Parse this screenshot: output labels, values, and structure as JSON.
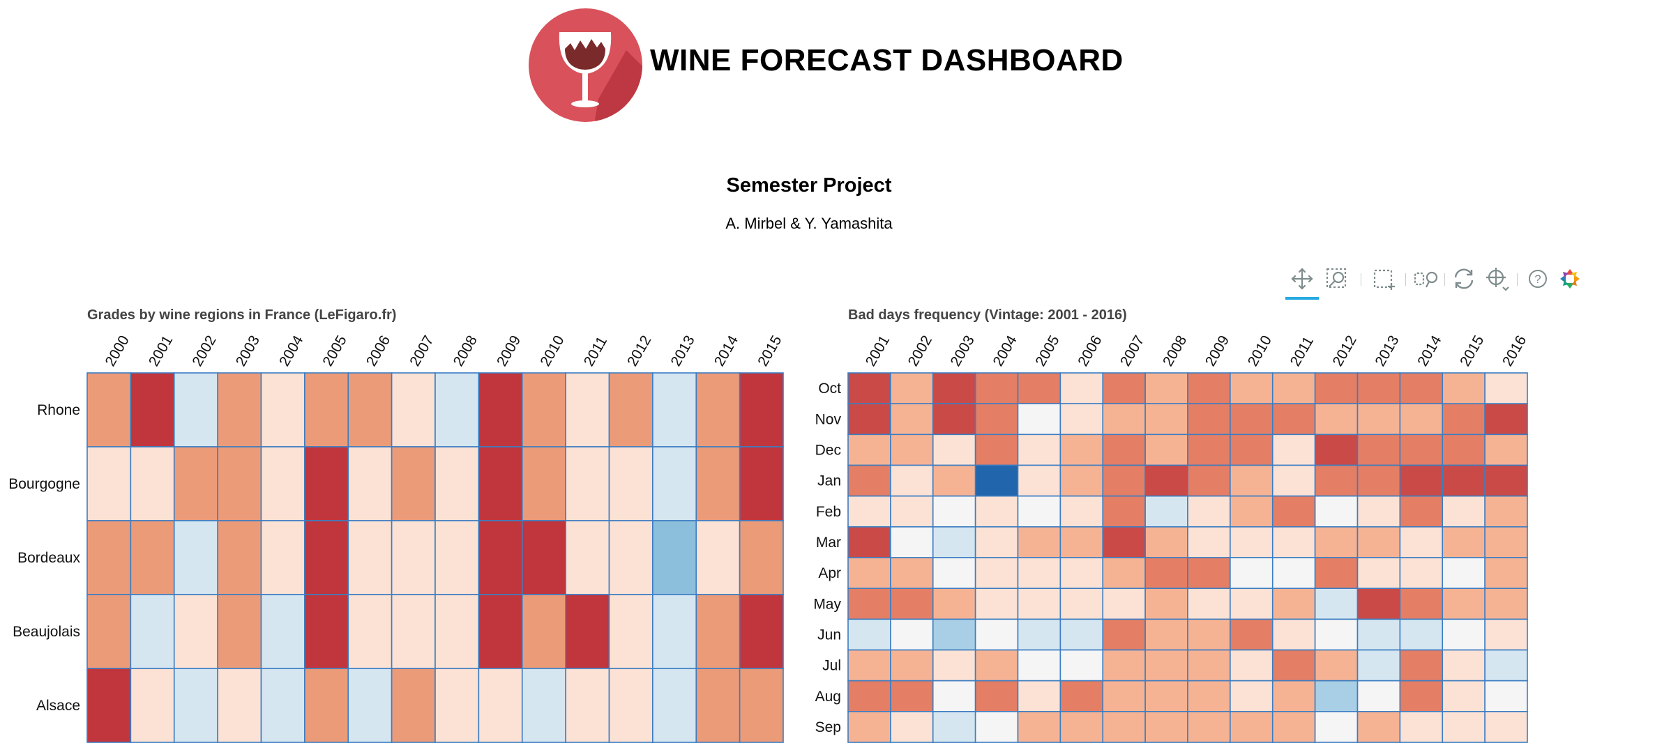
{
  "header": {
    "title": "WINE FORECAST DASHBOARD",
    "subtitle": "Semester Project",
    "authors": "A. Mirbel & Y. Yamashita",
    "logo_icon": "wine-glass-icon",
    "logo_color": "#d9515a"
  },
  "toolbar": {
    "tools": [
      {
        "name": "pan-tool",
        "icon": "move-icon",
        "active": true
      },
      {
        "name": "wheel-zoom-tool",
        "icon": "zoom-icon",
        "active": false
      },
      {
        "name": "box-zoom-tool",
        "icon": "box-select-icon",
        "active": false
      },
      {
        "name": "link-tool",
        "icon": "link-icon",
        "active": false
      },
      {
        "name": "reset-tool",
        "icon": "reset-icon",
        "active": false
      },
      {
        "name": "crosshair-tool",
        "icon": "crosshair-icon",
        "active": false
      },
      {
        "name": "help-tool",
        "icon": "help-icon",
        "active": false
      },
      {
        "name": "bokeh-logo",
        "icon": "bokeh-logo-icon",
        "active": false
      }
    ]
  },
  "colors": {
    "palette": [
      "#2166ac",
      "#8bbfdc",
      "#a8cfe5",
      "#d5e6f1",
      "#f5f5f5",
      "#fbe2d5",
      "#f6b394",
      "#ec9b79",
      "#e47e65",
      "#ca4a48",
      "#c1353d"
    ],
    "grid_line": "#3c7dc2"
  },
  "chart_data": [
    {
      "type": "heatmap",
      "title": "Grades by wine regions in France (LeFigaro.fr)",
      "x": [
        "2000",
        "2001",
        "2002",
        "2003",
        "2004",
        "2005",
        "2006",
        "2007",
        "2008",
        "2009",
        "2010",
        "2011",
        "2012",
        "2013",
        "2014",
        "2015"
      ],
      "y": [
        "Rhone",
        "Bourgogne",
        "Bordeaux",
        "Beaujolais",
        "Alsace"
      ],
      "color_scale": "diverging blue-white-red, 0 = darkest blue, 10 = darkest red",
      "values": [
        [
          7,
          10,
          3,
          7,
          5,
          7,
          7,
          5,
          3,
          10,
          7,
          5,
          7,
          3,
          7,
          10
        ],
        [
          5,
          5,
          7,
          7,
          5,
          10,
          5,
          7,
          5,
          10,
          7,
          5,
          5,
          3,
          7,
          10
        ],
        [
          7,
          7,
          3,
          7,
          5,
          10,
          5,
          5,
          5,
          10,
          10,
          5,
          5,
          1,
          5,
          7
        ],
        [
          7,
          3,
          5,
          7,
          3,
          10,
          5,
          5,
          5,
          10,
          7,
          10,
          5,
          3,
          7,
          10
        ],
        [
          10,
          5,
          3,
          5,
          3,
          7,
          3,
          7,
          5,
          5,
          3,
          5,
          5,
          3,
          7,
          7
        ]
      ]
    },
    {
      "type": "heatmap",
      "title": "Bad days frequency (Vintage: 2001 - 2016)",
      "x": [
        "2001",
        "2002",
        "2003",
        "2004",
        "2005",
        "2006",
        "2007",
        "2008",
        "2009",
        "2010",
        "2011",
        "2012",
        "2013",
        "2014",
        "2015",
        "2016"
      ],
      "y": [
        "Oct",
        "Nov",
        "Dec",
        "Jan",
        "Feb",
        "Mar",
        "Apr",
        "May",
        "Jun",
        "Jul",
        "Aug",
        "Sep"
      ],
      "color_scale": "diverging blue-white-red, 0 = darkest blue, 10 = darkest red",
      "values": [
        [
          9,
          6,
          9,
          8,
          8,
          5,
          8,
          6,
          8,
          6,
          6,
          8,
          8,
          8,
          6,
          5
        ],
        [
          9,
          6,
          9,
          8,
          4,
          5,
          6,
          6,
          8,
          8,
          8,
          6,
          6,
          6,
          8,
          9
        ],
        [
          6,
          6,
          5,
          8,
          5,
          6,
          8,
          6,
          8,
          8,
          5,
          9,
          8,
          8,
          8,
          6
        ],
        [
          8,
          5,
          6,
          0,
          5,
          6,
          8,
          9,
          8,
          6,
          5,
          8,
          8,
          9,
          9,
          9
        ],
        [
          5,
          5,
          4,
          5,
          4,
          5,
          8,
          3,
          5,
          6,
          8,
          4,
          5,
          8,
          5,
          6
        ],
        [
          9,
          4,
          3,
          5,
          6,
          6,
          9,
          6,
          5,
          5,
          5,
          6,
          6,
          5,
          6,
          6
        ],
        [
          6,
          6,
          4,
          5,
          5,
          5,
          6,
          8,
          8,
          4,
          4,
          8,
          5,
          5,
          4,
          6
        ],
        [
          8,
          8,
          6,
          5,
          5,
          5,
          5,
          6,
          5,
          5,
          6,
          3,
          9,
          8,
          6,
          6
        ],
        [
          3,
          4,
          2,
          4,
          3,
          3,
          8,
          6,
          6,
          8,
          5,
          4,
          3,
          3,
          4,
          5
        ],
        [
          6,
          6,
          5,
          6,
          4,
          4,
          6,
          6,
          6,
          5,
          8,
          6,
          3,
          8,
          5,
          3
        ],
        [
          8,
          8,
          4,
          8,
          5,
          8,
          6,
          6,
          6,
          5,
          6,
          2,
          4,
          8,
          5,
          4
        ],
        [
          6,
          5,
          3,
          4,
          6,
          6,
          6,
          6,
          6,
          6,
          6,
          4,
          6,
          5,
          5,
          5
        ]
      ]
    }
  ]
}
